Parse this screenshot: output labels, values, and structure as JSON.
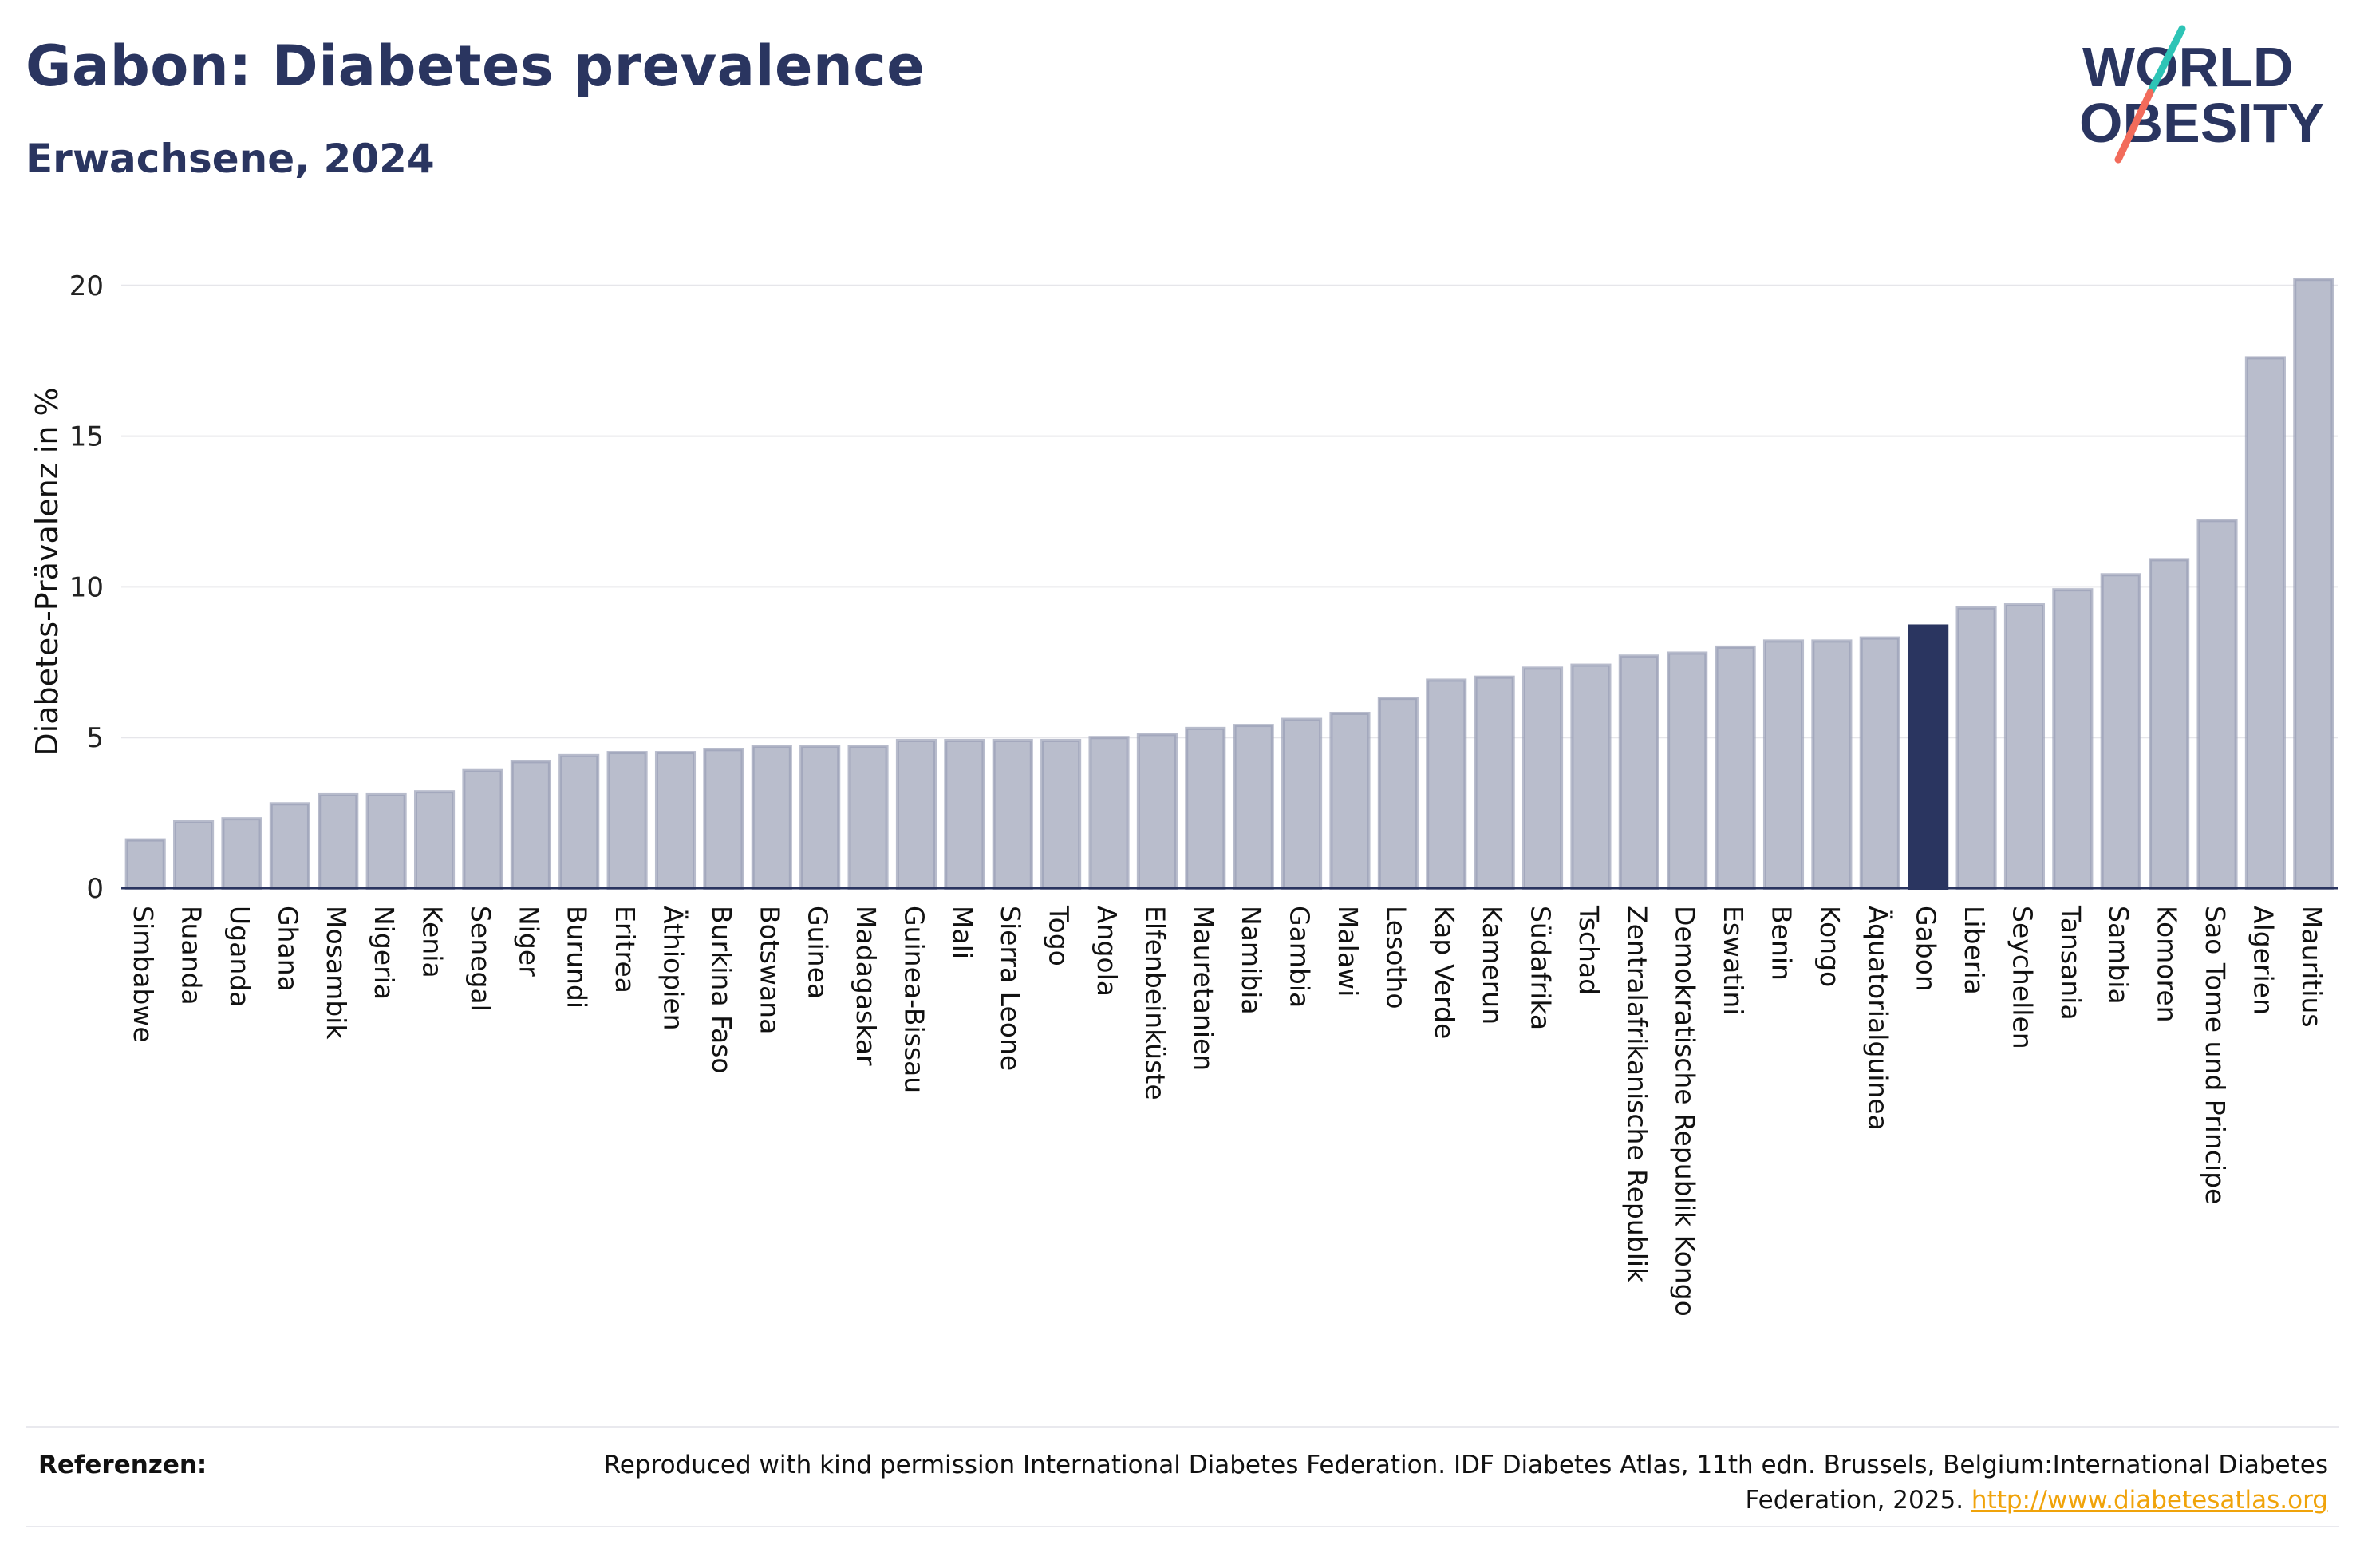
{
  "header": {
    "title": "Gabon: Diabetes prevalence",
    "subtitle": "Erwachsene, 2024"
  },
  "logo": {
    "line1": "WORLD",
    "line2": "OBESITY",
    "text_color": "#2a3560",
    "slash_top_color": "#2ec4b6",
    "slash_bottom_color": "#f26b5b"
  },
  "chart_data": {
    "type": "bar",
    "ylabel": "Diabetes-Prävalenz in %",
    "xlabel": "",
    "ylim": [
      0,
      21
    ],
    "yticks": [
      0,
      5,
      10,
      15,
      20
    ],
    "grid": true,
    "highlight": "Gabon",
    "colors": {
      "bar": "#b9bdcc",
      "bar_stroke": "#9aa0b6",
      "highlight": "#2a3560"
    },
    "categories": [
      "Simbabwe",
      "Ruanda",
      "Uganda",
      "Ghana",
      "Mosambik",
      "Nigeria",
      "Kenia",
      "Senegal",
      "Niger",
      "Burundi",
      "Eritrea",
      "Äthiopien",
      "Burkina Faso",
      "Botswana",
      "Guinea",
      "Madagaskar",
      "Guinea-Bissau",
      "Mali",
      "Sierra Leone",
      "Togo",
      "Angola",
      "Elfenbeinküste",
      "Mauretanien",
      "Namibia",
      "Gambia",
      "Malawi",
      "Lesotho",
      "Kap Verde",
      "Kamerun",
      "Südafrika",
      "Tschad",
      "Zentralafrikanische Republik",
      "Demokratische Republik Kongo",
      "Eswatini",
      "Benin",
      "Kongo",
      "Äquatorialguinea",
      "Gabon",
      "Liberia",
      "Seychellen",
      "Tansania",
      "Sambia",
      "Komoren",
      "Sao Tome und Principe",
      "Algerien",
      "Mauritius"
    ],
    "values": [
      1.6,
      2.2,
      2.3,
      2.8,
      3.1,
      3.1,
      3.2,
      3.9,
      4.2,
      4.4,
      4.5,
      4.5,
      4.6,
      4.7,
      4.7,
      4.7,
      4.9,
      4.9,
      4.9,
      4.9,
      5.0,
      5.1,
      5.3,
      5.4,
      5.6,
      5.8,
      6.3,
      6.9,
      7.0,
      7.3,
      7.4,
      7.7,
      7.8,
      8.0,
      8.2,
      8.2,
      8.3,
      8.7,
      9.3,
      9.4,
      9.9,
      10.4,
      10.9,
      12.2,
      17.6,
      20.2
    ]
  },
  "footer": {
    "ref_label": "Referenzen:",
    "ref_text": "Reproduced with kind permission International Diabetes Federation. IDF Diabetes Atlas, 11th edn. Brussels, Belgium:International Diabetes Federation, 2025.",
    "ref_link": "http://www.diabetesatlas.org"
  }
}
